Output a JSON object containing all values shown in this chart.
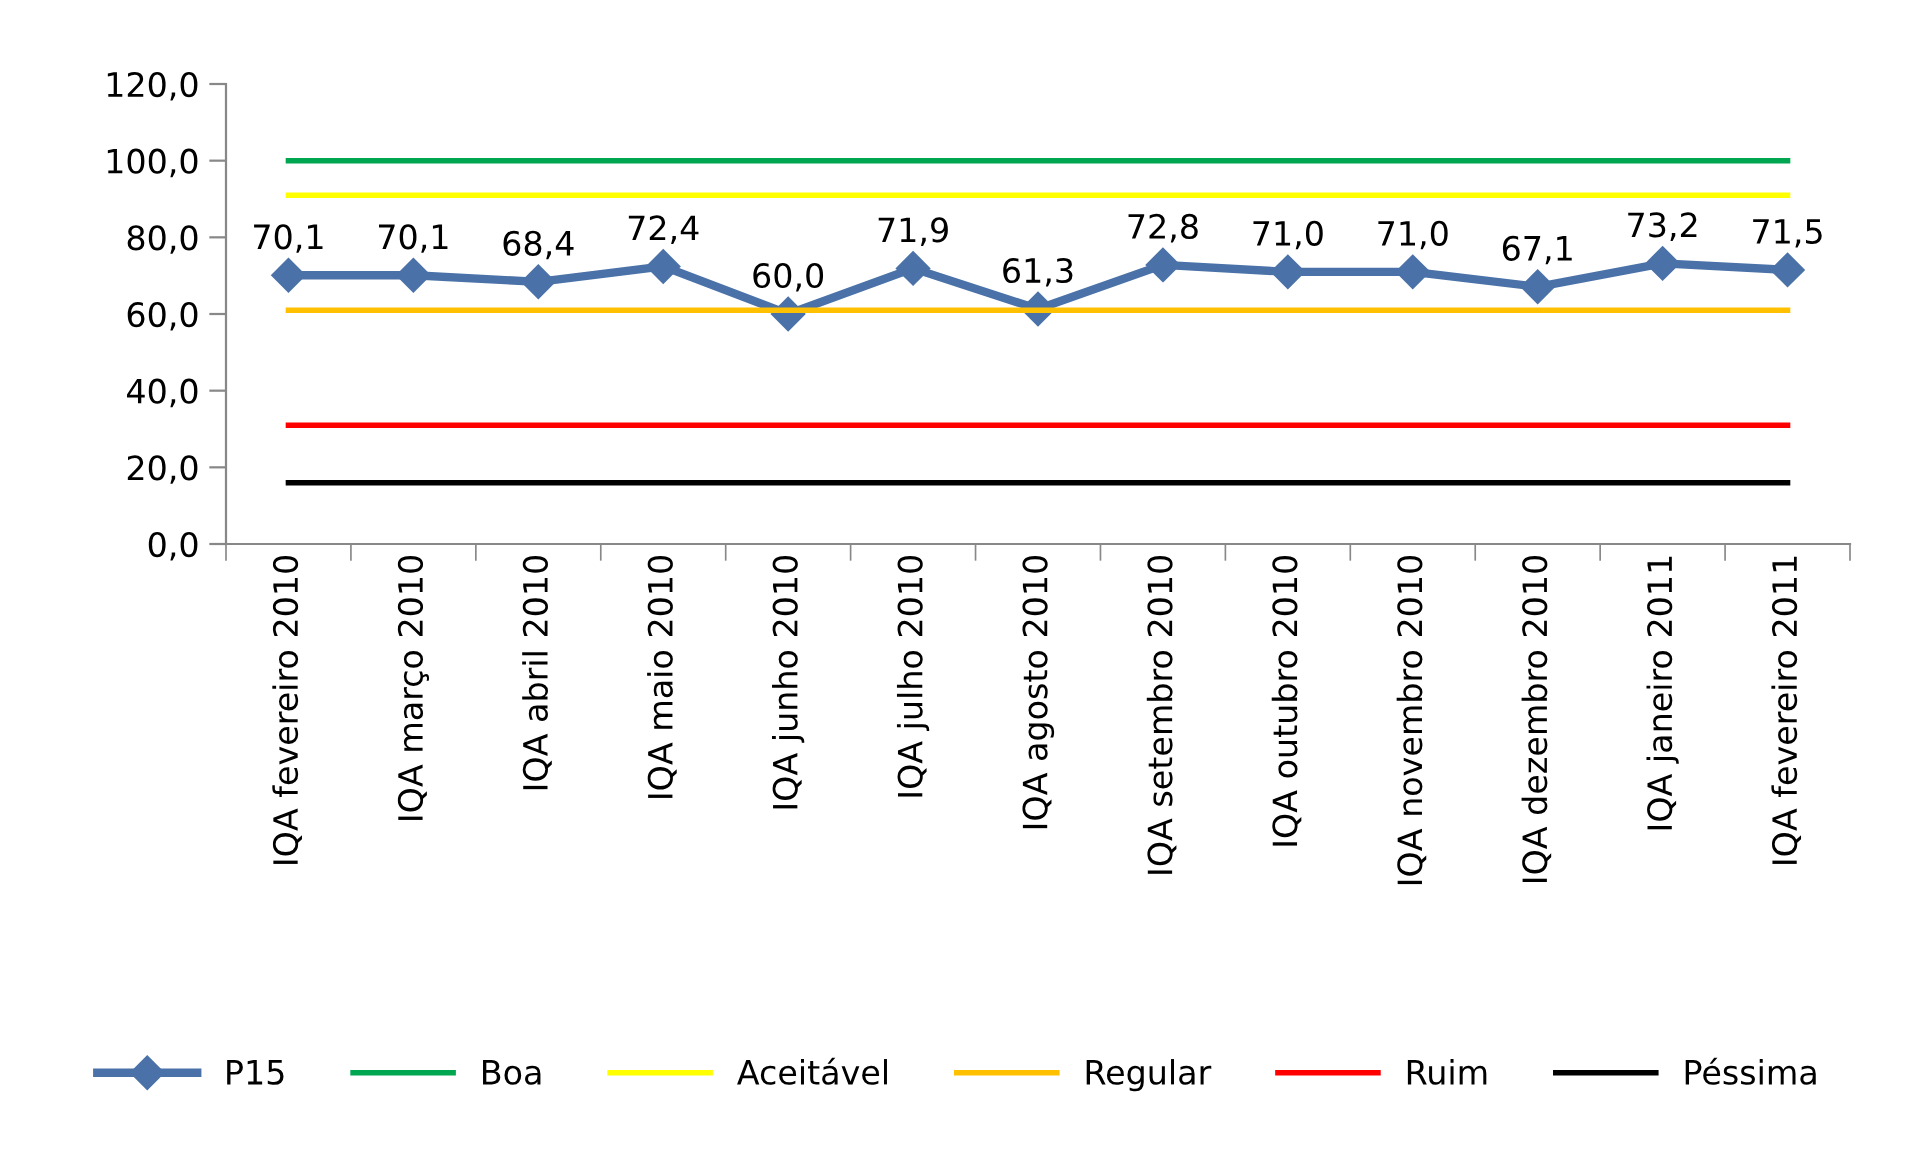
{
  "chart_data": {
    "type": "line",
    "categories": [
      "IQA fevereiro 2010",
      "IQA março 2010",
      "IQA abril 2010",
      "IQA maio 2010",
      "IQA junho 2010",
      "IQA julho 2010",
      "IQA agosto 2010",
      "IQA setembro 2010",
      "IQA outubro 2010",
      "IQA novembro 2010",
      "IQA dezembro 2010",
      "IQA janeiro 2011",
      "IQA fevereiro 2011"
    ],
    "series": [
      {
        "name": "P15",
        "color": "#4a72a8",
        "marker": "diamond",
        "values": [
          70.1,
          70.1,
          68.4,
          72.4,
          60.0,
          71.9,
          61.3,
          72.8,
          71.0,
          71.0,
          67.1,
          73.2,
          71.5
        ],
        "value_labels": [
          "70,1",
          "70,1",
          "68,4",
          "72,4",
          "60,0",
          "71,9",
          "61,3",
          "72,8",
          "71,0",
          "71,0",
          "67,1",
          "73,2",
          "71,5"
        ]
      },
      {
        "name": "Boa",
        "color": "#00a650",
        "values": [
          100,
          100,
          100,
          100,
          100,
          100,
          100,
          100,
          100,
          100,
          100,
          100,
          100
        ]
      },
      {
        "name": "Aceitável",
        "color": "#ffff00",
        "values": [
          91,
          91,
          91,
          91,
          91,
          91,
          91,
          91,
          91,
          91,
          91,
          91,
          91
        ]
      },
      {
        "name": "Regular",
        "color": "#ffc000",
        "values": [
          61,
          61,
          61,
          61,
          61,
          61,
          61,
          61,
          61,
          61,
          61,
          61,
          61
        ]
      },
      {
        "name": "Ruim",
        "color": "#ff0000",
        "values": [
          31,
          31,
          31,
          31,
          31,
          31,
          31,
          31,
          31,
          31,
          31,
          31,
          31
        ]
      },
      {
        "name": "Péssima",
        "color": "#000000",
        "values": [
          16,
          16,
          16,
          16,
          16,
          16,
          16,
          16,
          16,
          16,
          16,
          16,
          16
        ]
      }
    ],
    "ylim": [
      0,
      120
    ],
    "yticks": [
      {
        "value": 0,
        "label": "0,0"
      },
      {
        "value": 20,
        "label": "20,0"
      },
      {
        "value": 40,
        "label": "40,0"
      },
      {
        "value": 60,
        "label": "60,0"
      },
      {
        "value": 80,
        "label": "80,0"
      },
      {
        "value": 100,
        "label": "100,0"
      },
      {
        "value": 120,
        "label": "120,0"
      }
    ],
    "grid": false,
    "legend": "bottom",
    "line_style": "solid"
  }
}
